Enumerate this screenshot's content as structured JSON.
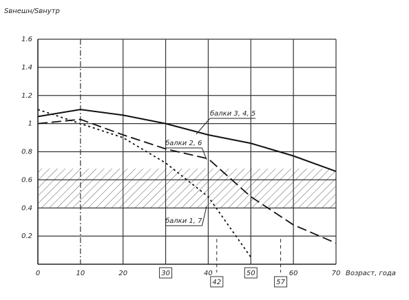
{
  "chart_data": {
    "type": "line",
    "ylabel": "Sвнешн/Sвнутр",
    "xlabel": "Возраст, года",
    "xlim": [
      0,
      70
    ],
    "ylim": [
      0,
      1.6
    ],
    "xticks": [
      0,
      10,
      20,
      30,
      40,
      50,
      60,
      70
    ],
    "yticks": [
      0.2,
      0.4,
      0.6,
      0.8,
      1,
      1.2,
      1.4,
      1.6
    ],
    "x_markers": [
      42,
      57
    ],
    "band": [
      0.4,
      0.68
    ],
    "grid": true,
    "x": [
      0,
      10,
      20,
      30,
      40,
      50,
      60,
      70
    ],
    "series": [
      {
        "name": "балки 3, 4, 5",
        "color": "#111",
        "style": "solid",
        "values": [
          1.05,
          1.1,
          1.06,
          1.0,
          0.92,
          0.86,
          0.77,
          0.66
        ]
      },
      {
        "name": "балки 2, 6",
        "color": "#111",
        "style": "dashed",
        "values": [
          1.0,
          1.03,
          0.92,
          0.82,
          0.75,
          0.48,
          0.28,
          0.15
        ]
      },
      {
        "name": "балки 1, 7",
        "color": "#111",
        "style": "dotted",
        "values": [
          1.1,
          1.0,
          0.9,
          0.72,
          0.48,
          0.05,
          null,
          null
        ]
      }
    ]
  }
}
